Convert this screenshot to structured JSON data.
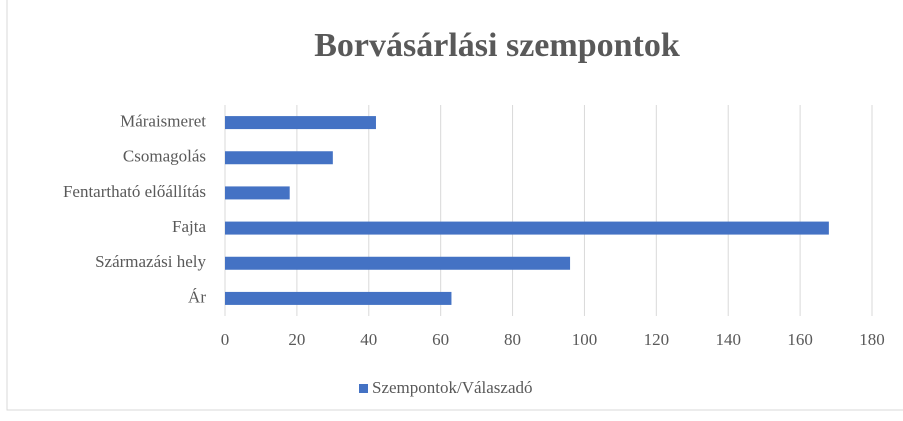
{
  "chart_data": {
    "type": "bar",
    "orientation": "horizontal",
    "title": "Borvásárlási szempontok",
    "categories": [
      "Máraismeret",
      "Csomagolás",
      "Fentartható előállítás",
      "Fajta",
      "Származási hely",
      "Ár"
    ],
    "series": [
      {
        "name": "Szempontok/Válaszadó",
        "color": "#4472c4",
        "values": [
          42,
          30,
          18,
          168,
          96,
          63
        ]
      }
    ],
    "xlim": [
      0,
      180
    ],
    "xticks": [
      0,
      20,
      40,
      60,
      80,
      100,
      120,
      140,
      160,
      180
    ],
    "grid": true,
    "legend": "bottom"
  }
}
